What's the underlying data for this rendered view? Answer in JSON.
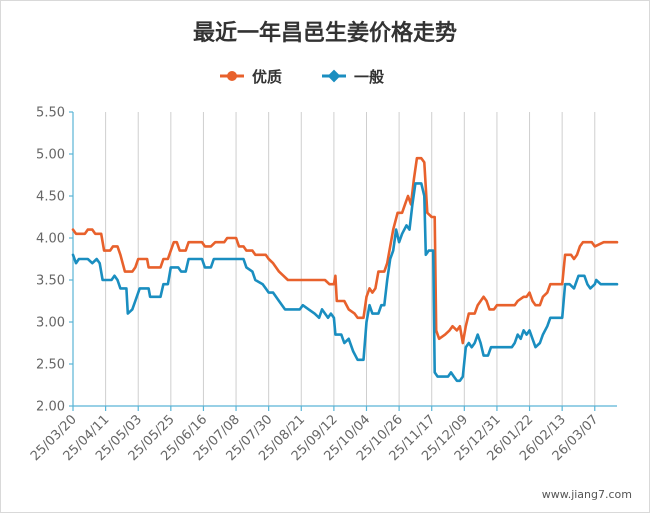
{
  "watermark": "www.jiang7.com",
  "chart_data": {
    "type": "line",
    "title": "最近一年昌邑生姜价格走势",
    "xlabel": "",
    "ylabel": "",
    "ylim": [
      2.0,
      5.5
    ],
    "y_ticks": [
      "5.50",
      "5.00",
      "4.50",
      "4.00",
      "3.50",
      "3.00",
      "2.50",
      "2.00"
    ],
    "x_ticks": [
      "25/03/20",
      "25/04/11",
      "25/05/03",
      "25/05/25",
      "25/06/16",
      "25/07/08",
      "25/07/30",
      "25/08/21",
      "25/09/12",
      "25/10/04",
      "25/10/26",
      "25/11/17",
      "25/12/09",
      "25/12/31",
      "26/01/22",
      "26/02/13",
      "26/03/07"
    ],
    "x_range": [
      "25/03/20",
      "26/03/22"
    ],
    "grid": "vertical lines at ticks",
    "legend_position": "top-center",
    "series": [
      {
        "name": "优质",
        "color": "#e8612c",
        "points": [
          [
            "25/03/20",
            4.1
          ],
          [
            "25/03/22",
            4.05
          ],
          [
            "25/03/28",
            4.05
          ],
          [
            "25/03/30",
            4.1
          ],
          [
            "25/04/02",
            4.1
          ],
          [
            "25/04/04",
            4.05
          ],
          [
            "25/04/08",
            4.05
          ],
          [
            "25/04/10",
            3.85
          ],
          [
            "25/04/14",
            3.85
          ],
          [
            "25/04/16",
            3.9
          ],
          [
            "25/04/19",
            3.9
          ],
          [
            "25/04/21",
            3.8
          ],
          [
            "25/04/24",
            3.6
          ],
          [
            "25/04/29",
            3.6
          ],
          [
            "25/05/01",
            3.65
          ],
          [
            "25/05/03",
            3.75
          ],
          [
            "25/05/06",
            3.75
          ],
          [
            "25/05/09",
            3.75
          ],
          [
            "25/05/10",
            3.65
          ],
          [
            "25/05/18",
            3.65
          ],
          [
            "25/05/20",
            3.75
          ],
          [
            "25/05/23",
            3.75
          ],
          [
            "25/05/25",
            3.85
          ],
          [
            "25/05/27",
            3.95
          ],
          [
            "25/05/29",
            3.95
          ],
          [
            "25/05/31",
            3.85
          ],
          [
            "25/06/04",
            3.85
          ],
          [
            "25/06/06",
            3.95
          ],
          [
            "25/06/15",
            3.95
          ],
          [
            "25/06/17",
            3.9
          ],
          [
            "25/06/21",
            3.9
          ],
          [
            "25/06/24",
            3.95
          ],
          [
            "25/06/30",
            3.95
          ],
          [
            "25/07/02",
            4.0
          ],
          [
            "25/07/08",
            4.0
          ],
          [
            "25/07/10",
            3.9
          ],
          [
            "25/07/13",
            3.9
          ],
          [
            "25/07/15",
            3.85
          ],
          [
            "25/07/19",
            3.85
          ],
          [
            "25/07/21",
            3.8
          ],
          [
            "25/07/28",
            3.8
          ],
          [
            "25/07/30",
            3.75
          ],
          [
            "25/08/02",
            3.7
          ],
          [
            "25/08/06",
            3.6
          ],
          [
            "25/08/09",
            3.55
          ],
          [
            "25/08/12",
            3.5
          ],
          [
            "25/09/06",
            3.5
          ],
          [
            "25/09/09",
            3.45
          ],
          [
            "25/09/12",
            3.45
          ],
          [
            "25/09/13",
            3.55
          ],
          [
            "25/09/14",
            3.25
          ],
          [
            "25/09/19",
            3.25
          ],
          [
            "25/09/22",
            3.15
          ],
          [
            "25/09/26",
            3.1
          ],
          [
            "25/09/28",
            3.05
          ],
          [
            "25/10/02",
            3.05
          ],
          [
            "25/10/04",
            3.3
          ],
          [
            "25/10/06",
            3.4
          ],
          [
            "25/10/08",
            3.35
          ],
          [
            "25/10/10",
            3.4
          ],
          [
            "25/10/12",
            3.6
          ],
          [
            "25/10/16",
            3.6
          ],
          [
            "25/10/18",
            3.7
          ],
          [
            "25/10/20",
            3.9
          ],
          [
            "25/10/22",
            4.1
          ],
          [
            "25/10/25",
            4.3
          ],
          [
            "25/10/28",
            4.3
          ],
          [
            "25/10/30",
            4.4
          ],
          [
            "25/11/01",
            4.5
          ],
          [
            "25/11/03",
            4.4
          ],
          [
            "25/11/05",
            4.7
          ],
          [
            "25/11/07",
            4.95
          ],
          [
            "25/11/10",
            4.95
          ],
          [
            "25/11/12",
            4.9
          ],
          [
            "25/11/14",
            4.3
          ],
          [
            "25/11/17",
            4.25
          ],
          [
            "25/11/19",
            4.25
          ],
          [
            "25/11/20",
            2.9
          ],
          [
            "25/11/22",
            2.8
          ],
          [
            "25/11/26",
            2.85
          ],
          [
            "25/11/29",
            2.9
          ],
          [
            "25/12/01",
            2.95
          ],
          [
            "25/12/04",
            2.9
          ],
          [
            "25/12/06",
            2.95
          ],
          [
            "25/12/08",
            2.75
          ],
          [
            "25/12/10",
            2.95
          ],
          [
            "25/12/12",
            3.1
          ],
          [
            "25/12/16",
            3.1
          ],
          [
            "25/12/18",
            3.2
          ],
          [
            "25/12/22",
            3.3
          ],
          [
            "25/12/24",
            3.25
          ],
          [
            "25/12/26",
            3.15
          ],
          [
            "25/12/29",
            3.15
          ],
          [
            "25/12/31",
            3.2
          ],
          [
            "26/01/12",
            3.2
          ],
          [
            "26/01/14",
            3.25
          ],
          [
            "26/01/18",
            3.3
          ],
          [
            "26/01/20",
            3.3
          ],
          [
            "26/01/22",
            3.35
          ],
          [
            "26/01/24",
            3.25
          ],
          [
            "26/01/26",
            3.2
          ],
          [
            "26/01/29",
            3.2
          ],
          [
            "26/01/31",
            3.3
          ],
          [
            "26/02/03",
            3.35
          ],
          [
            "26/02/05",
            3.45
          ],
          [
            "26/02/13",
            3.45
          ],
          [
            "26/02/15",
            3.8
          ],
          [
            "26/02/19",
            3.8
          ],
          [
            "26/02/21",
            3.75
          ],
          [
            "26/02/23",
            3.8
          ],
          [
            "26/02/25",
            3.9
          ],
          [
            "26/02/27",
            3.95
          ],
          [
            "26/03/05",
            3.95
          ],
          [
            "26/03/07",
            3.9
          ],
          [
            "26/03/13",
            3.95
          ],
          [
            "26/03/22",
            3.95
          ]
        ]
      },
      {
        "name": "一般",
        "color": "#1a8ec0",
        "points": [
          [
            "25/03/20",
            3.8
          ],
          [
            "25/03/22",
            3.7
          ],
          [
            "25/03/24",
            3.75
          ],
          [
            "25/03/30",
            3.75
          ],
          [
            "25/04/02",
            3.7
          ],
          [
            "25/04/05",
            3.75
          ],
          [
            "25/04/07",
            3.7
          ],
          [
            "25/04/09",
            3.5
          ],
          [
            "25/04/15",
            3.5
          ],
          [
            "25/04/17",
            3.55
          ],
          [
            "25/04/19",
            3.5
          ],
          [
            "25/04/21",
            3.4
          ],
          [
            "25/04/25",
            3.4
          ],
          [
            "25/04/26",
            3.1
          ],
          [
            "25/04/29",
            3.15
          ],
          [
            "25/05/01",
            3.25
          ],
          [
            "25/05/04",
            3.4
          ],
          [
            "25/05/10",
            3.4
          ],
          [
            "25/05/11",
            3.3
          ],
          [
            "25/05/18",
            3.3
          ],
          [
            "25/05/20",
            3.45
          ],
          [
            "25/05/23",
            3.45
          ],
          [
            "25/05/25",
            3.65
          ],
          [
            "25/05/30",
            3.65
          ],
          [
            "25/06/01",
            3.6
          ],
          [
            "25/06/04",
            3.6
          ],
          [
            "25/06/06",
            3.75
          ],
          [
            "25/06/15",
            3.75
          ],
          [
            "25/06/17",
            3.65
          ],
          [
            "25/06/21",
            3.65
          ],
          [
            "25/06/23",
            3.75
          ],
          [
            "25/07/13",
            3.75
          ],
          [
            "25/07/15",
            3.65
          ],
          [
            "25/07/19",
            3.6
          ],
          [
            "25/07/21",
            3.5
          ],
          [
            "25/07/26",
            3.45
          ],
          [
            "25/07/28",
            3.4
          ],
          [
            "25/07/30",
            3.35
          ],
          [
            "25/08/02",
            3.35
          ],
          [
            "25/08/06",
            3.25
          ],
          [
            "25/08/10",
            3.15
          ],
          [
            "25/08/20",
            3.15
          ],
          [
            "25/08/22",
            3.2
          ],
          [
            "25/08/26",
            3.15
          ],
          [
            "25/08/30",
            3.1
          ],
          [
            "25/09/02",
            3.05
          ],
          [
            "25/09/04",
            3.15
          ],
          [
            "25/09/08",
            3.05
          ],
          [
            "25/09/10",
            3.1
          ],
          [
            "25/09/12",
            3.05
          ],
          [
            "25/09/13",
            2.85
          ],
          [
            "25/09/17",
            2.85
          ],
          [
            "25/09/19",
            2.75
          ],
          [
            "25/09/22",
            2.8
          ],
          [
            "25/09/25",
            2.65
          ],
          [
            "25/09/28",
            2.55
          ],
          [
            "25/10/02",
            2.55
          ],
          [
            "25/10/04",
            3.0
          ],
          [
            "25/10/06",
            3.2
          ],
          [
            "25/10/08",
            3.1
          ],
          [
            "25/10/12",
            3.1
          ],
          [
            "25/10/14",
            3.2
          ],
          [
            "25/10/16",
            3.2
          ],
          [
            "25/10/18",
            3.5
          ],
          [
            "25/10/20",
            3.75
          ],
          [
            "25/10/22",
            3.85
          ],
          [
            "25/10/24",
            4.1
          ],
          [
            "25/10/26",
            3.95
          ],
          [
            "25/10/28",
            4.05
          ],
          [
            "25/10/31",
            4.15
          ],
          [
            "25/11/02",
            4.1
          ],
          [
            "25/11/04",
            4.4
          ],
          [
            "25/11/06",
            4.65
          ],
          [
            "25/11/10",
            4.65
          ],
          [
            "25/11/12",
            4.5
          ],
          [
            "25/11/13",
            3.8
          ],
          [
            "25/11/15",
            3.85
          ],
          [
            "25/11/18",
            3.85
          ],
          [
            "25/11/19",
            2.4
          ],
          [
            "25/11/21",
            2.35
          ],
          [
            "25/11/28",
            2.35
          ],
          [
            "25/11/30",
            2.4
          ],
          [
            "25/12/02",
            2.35
          ],
          [
            "25/12/04",
            2.3
          ],
          [
            "25/12/06",
            2.3
          ],
          [
            "25/12/08",
            2.35
          ],
          [
            "25/12/10",
            2.7
          ],
          [
            "25/12/12",
            2.75
          ],
          [
            "25/12/14",
            2.7
          ],
          [
            "25/12/16",
            2.75
          ],
          [
            "25/12/18",
            2.85
          ],
          [
            "25/12/20",
            2.75
          ],
          [
            "25/12/22",
            2.6
          ],
          [
            "25/12/25",
            2.6
          ],
          [
            "25/12/27",
            2.7
          ],
          [
            "26/01/10",
            2.7
          ],
          [
            "26/01/12",
            2.75
          ],
          [
            "26/01/14",
            2.85
          ],
          [
            "26/01/16",
            2.8
          ],
          [
            "26/01/18",
            2.9
          ],
          [
            "26/01/20",
            2.85
          ],
          [
            "26/01/22",
            2.9
          ],
          [
            "26/01/24",
            2.8
          ],
          [
            "26/01/26",
            2.7
          ],
          [
            "26/01/29",
            2.75
          ],
          [
            "26/01/31",
            2.85
          ],
          [
            "26/02/03",
            2.95
          ],
          [
            "26/02/05",
            3.05
          ],
          [
            "26/02/13",
            3.05
          ],
          [
            "26/02/15",
            3.45
          ],
          [
            "26/02/18",
            3.45
          ],
          [
            "26/02/21",
            3.4
          ],
          [
            "26/02/24",
            3.55
          ],
          [
            "26/02/28",
            3.55
          ],
          [
            "26/03/02",
            3.45
          ],
          [
            "26/03/04",
            3.4
          ],
          [
            "26/03/07",
            3.45
          ],
          [
            "26/03/08",
            3.5
          ],
          [
            "26/03/11",
            3.45
          ],
          [
            "26/03/22",
            3.45
          ]
        ]
      }
    ]
  }
}
